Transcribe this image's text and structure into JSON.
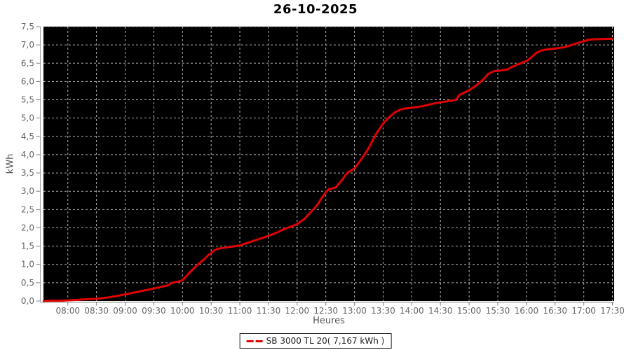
{
  "title": "26-10-2025",
  "chart_data": {
    "type": "line",
    "title": "26-10-2025",
    "xlabel": "Heures",
    "ylabel": "kWh",
    "plot_bg": "#000000",
    "grid_color": "#b0b0b0",
    "grid_style": "dashed",
    "axis_line_color": "#a0a0a0",
    "tick_color": "#808080",
    "tick_text_color": "#666666",
    "x_domain_hours": [
      7.575,
      17.53
    ],
    "ylim": [
      0,
      7.5
    ],
    "x_ticks": [
      {
        "h": 8.0,
        "label": "08:00"
      },
      {
        "h": 8.5,
        "label": "08:30"
      },
      {
        "h": 9.0,
        "label": "09:00"
      },
      {
        "h": 9.5,
        "label": "09:30"
      },
      {
        "h": 10.0,
        "label": "10:00"
      },
      {
        "h": 10.5,
        "label": "10:30"
      },
      {
        "h": 11.0,
        "label": "11:00"
      },
      {
        "h": 11.5,
        "label": "11:30"
      },
      {
        "h": 12.0,
        "label": "12:00"
      },
      {
        "h": 12.5,
        "label": "12:30"
      },
      {
        "h": 13.0,
        "label": "13:00"
      },
      {
        "h": 13.5,
        "label": "13:30"
      },
      {
        "h": 14.0,
        "label": "14:00"
      },
      {
        "h": 14.5,
        "label": "14:30"
      },
      {
        "h": 15.0,
        "label": "15:00"
      },
      {
        "h": 15.5,
        "label": "15:30"
      },
      {
        "h": 16.0,
        "label": "16:00"
      },
      {
        "h": 16.5,
        "label": "16:30"
      },
      {
        "h": 17.0,
        "label": "17:00"
      },
      {
        "h": 17.5,
        "label": "17:30"
      }
    ],
    "y_ticks": [
      {
        "v": 0.0,
        "label": "0,0"
      },
      {
        "v": 0.5,
        "label": "0,5"
      },
      {
        "v": 1.0,
        "label": "1,0"
      },
      {
        "v": 1.5,
        "label": "1,5"
      },
      {
        "v": 2.0,
        "label": "2,0"
      },
      {
        "v": 2.5,
        "label": "2,5"
      },
      {
        "v": 3.0,
        "label": "3,0"
      },
      {
        "v": 3.5,
        "label": "3,5"
      },
      {
        "v": 4.0,
        "label": "4,0"
      },
      {
        "v": 4.5,
        "label": "4,5"
      },
      {
        "v": 5.0,
        "label": "5,0"
      },
      {
        "v": 5.5,
        "label": "5,5"
      },
      {
        "v": 6.0,
        "label": "6,0"
      },
      {
        "v": 6.5,
        "label": "6,5"
      },
      {
        "v": 7.0,
        "label": "7,0"
      },
      {
        "v": 7.5,
        "label": "7,5"
      }
    ],
    "series": [
      {
        "name": "SB 3000 TL 20( 7,167 kWh )",
        "color": "#e10000",
        "stroke_width": 3,
        "points_hours_kwh": [
          [
            7.58,
            0.0
          ],
          [
            7.7,
            0.01
          ],
          [
            7.9,
            0.01
          ],
          [
            8.0,
            0.02
          ],
          [
            8.17,
            0.03
          ],
          [
            8.33,
            0.05
          ],
          [
            8.5,
            0.06
          ],
          [
            8.67,
            0.09
          ],
          [
            8.75,
            0.11
          ],
          [
            9.0,
            0.18
          ],
          [
            9.25,
            0.26
          ],
          [
            9.5,
            0.34
          ],
          [
            9.75,
            0.43
          ],
          [
            9.82,
            0.5
          ],
          [
            9.93,
            0.53
          ],
          [
            10.0,
            0.57
          ],
          [
            10.08,
            0.7
          ],
          [
            10.17,
            0.85
          ],
          [
            10.27,
            1.0
          ],
          [
            10.37,
            1.13
          ],
          [
            10.45,
            1.25
          ],
          [
            10.55,
            1.38
          ],
          [
            10.62,
            1.43
          ],
          [
            10.75,
            1.46
          ],
          [
            10.88,
            1.49
          ],
          [
            11.0,
            1.52
          ],
          [
            11.25,
            1.65
          ],
          [
            11.5,
            1.78
          ],
          [
            11.63,
            1.86
          ],
          [
            11.75,
            1.95
          ],
          [
            12.0,
            2.1
          ],
          [
            12.13,
            2.25
          ],
          [
            12.25,
            2.45
          ],
          [
            12.35,
            2.62
          ],
          [
            12.42,
            2.8
          ],
          [
            12.5,
            2.97
          ],
          [
            12.55,
            3.05
          ],
          [
            12.67,
            3.1
          ],
          [
            12.78,
            3.3
          ],
          [
            12.87,
            3.5
          ],
          [
            13.0,
            3.62
          ],
          [
            13.13,
            3.9
          ],
          [
            13.25,
            4.18
          ],
          [
            13.37,
            4.55
          ],
          [
            13.5,
            4.85
          ],
          [
            13.6,
            5.02
          ],
          [
            13.7,
            5.15
          ],
          [
            13.8,
            5.23
          ],
          [
            13.87,
            5.26
          ],
          [
            14.0,
            5.28
          ],
          [
            14.17,
            5.32
          ],
          [
            14.33,
            5.38
          ],
          [
            14.5,
            5.43
          ],
          [
            14.67,
            5.47
          ],
          [
            14.77,
            5.5
          ],
          [
            14.83,
            5.63
          ],
          [
            14.92,
            5.7
          ],
          [
            15.0,
            5.76
          ],
          [
            15.13,
            5.9
          ],
          [
            15.25,
            6.06
          ],
          [
            15.33,
            6.2
          ],
          [
            15.43,
            6.28
          ],
          [
            15.55,
            6.3
          ],
          [
            15.67,
            6.33
          ],
          [
            15.75,
            6.4
          ],
          [
            15.87,
            6.48
          ],
          [
            16.0,
            6.56
          ],
          [
            16.08,
            6.65
          ],
          [
            16.17,
            6.78
          ],
          [
            16.25,
            6.84
          ],
          [
            16.33,
            6.87
          ],
          [
            16.5,
            6.9
          ],
          [
            16.67,
            6.94
          ],
          [
            16.83,
            7.02
          ],
          [
            16.95,
            7.08
          ],
          [
            17.0,
            7.1
          ],
          [
            17.08,
            7.14
          ],
          [
            17.17,
            7.15
          ],
          [
            17.33,
            7.16
          ],
          [
            17.5,
            7.17
          ]
        ]
      }
    ],
    "legend": {
      "position": "bottom-center",
      "entries": [
        {
          "label": "SB 3000 TL 20( 7,167 kWh )",
          "color": "#e10000",
          "sample": "dashed-line"
        }
      ]
    }
  }
}
